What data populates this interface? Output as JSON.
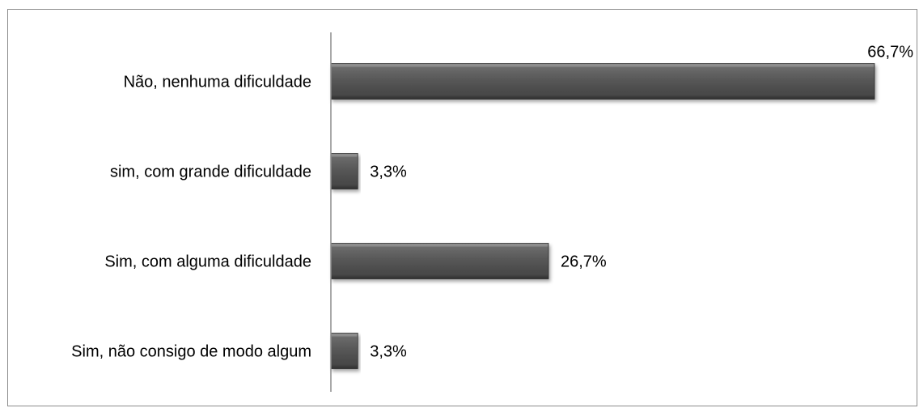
{
  "chart_data": {
    "type": "bar",
    "orientation": "horizontal",
    "categories": [
      "Não, nenhuma dificuldade",
      "sim, com grande dificuldade",
      "Sim, com alguma dificuldade",
      "Sim, não consigo de modo algum"
    ],
    "values": [
      66.7,
      3.3,
      26.7,
      3.3
    ],
    "value_labels": [
      "66,7%",
      "3,3%",
      "26,7%",
      "3,3%"
    ],
    "xlim": [
      0,
      66.7
    ],
    "grid": false,
    "legend": "none",
    "colors": {
      "bar_fill": "#5a5a5a",
      "bar_highlight": "#8a8a8a",
      "bar_shadow": "#2e2e2e",
      "axis": "#8c8c8c"
    }
  }
}
